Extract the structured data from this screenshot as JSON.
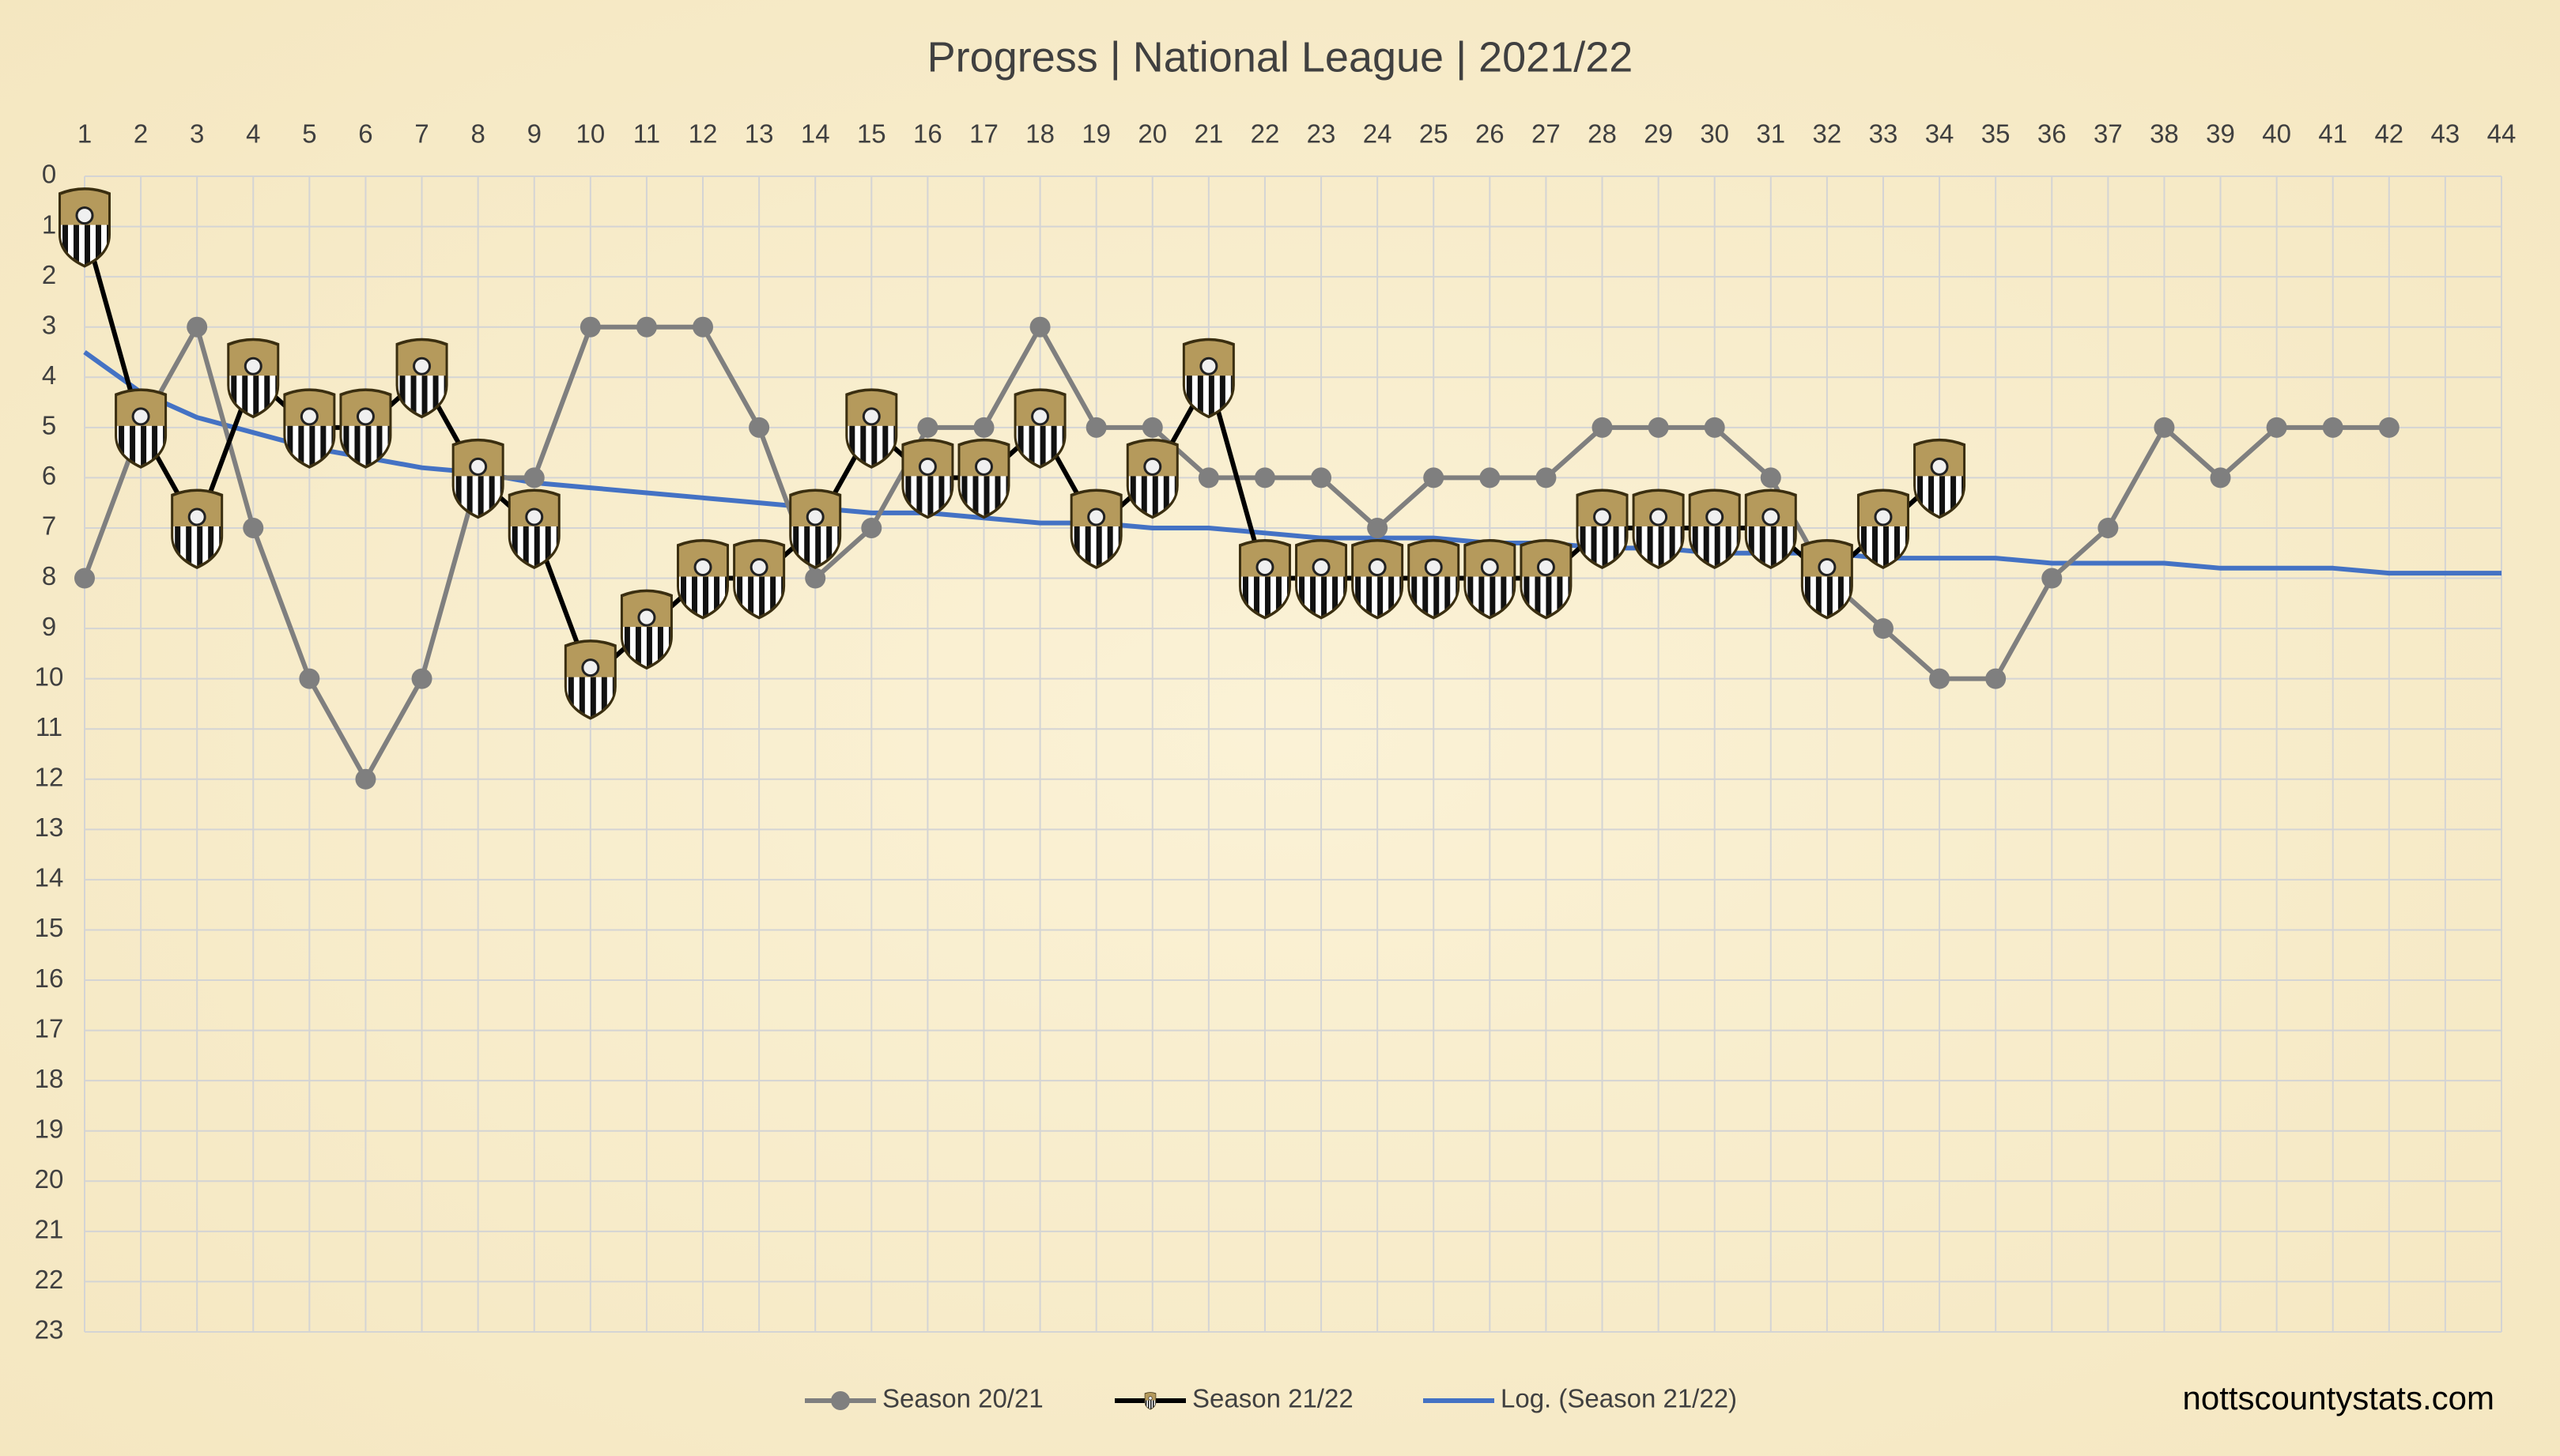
{
  "chart_data": {
    "type": "line",
    "title": "Progress | National League | 2021/22",
    "watermark": "nottscountystats.com",
    "categories": [
      1,
      2,
      3,
      4,
      5,
      6,
      7,
      8,
      9,
      10,
      11,
      12,
      13,
      14,
      15,
      16,
      17,
      18,
      19,
      20,
      21,
      22,
      23,
      24,
      25,
      26,
      27,
      28,
      29,
      30,
      31,
      32,
      33,
      34,
      35,
      36,
      37,
      38,
      39,
      40,
      41,
      42,
      43,
      44
    ],
    "ylim": [
      0,
      23
    ],
    "y_reversed": true,
    "yticks": [
      0,
      1,
      2,
      3,
      4,
      5,
      6,
      7,
      8,
      9,
      10,
      11,
      12,
      13,
      14,
      15,
      16,
      17,
      18,
      19,
      20,
      21,
      22,
      23
    ],
    "grid": true,
    "legend": "bottom",
    "series": [
      {
        "name": "Season 20/21",
        "color": "#7f7f7f",
        "marker": "circle",
        "values": [
          8,
          5,
          3,
          7,
          10,
          12,
          10,
          6,
          6,
          3,
          3,
          3,
          5,
          8,
          7,
          5,
          5,
          3,
          5,
          5,
          6,
          6,
          6,
          7,
          6,
          6,
          6,
          5,
          5,
          5,
          6,
          8,
          9,
          10,
          10,
          8,
          7,
          5,
          6,
          5,
          5,
          5,
          null,
          null
        ]
      },
      {
        "name": "Season 21/22",
        "color": "#000000",
        "marker": "badge",
        "values": [
          1,
          5,
          7,
          4,
          5,
          5,
          4,
          6,
          7,
          10,
          9,
          8,
          8,
          7,
          5,
          6,
          6,
          5,
          7,
          6,
          4,
          8,
          8,
          8,
          8,
          8,
          8,
          7,
          7,
          7,
          7,
          8,
          7,
          6,
          null,
          null,
          null,
          null,
          null,
          null,
          null,
          null,
          null,
          null
        ]
      },
      {
        "name": "Log. (Season 21/22)",
        "color": "#4472c4",
        "marker": "none",
        "values": [
          3.5,
          4.3,
          4.8,
          5.1,
          5.4,
          5.6,
          5.8,
          5.9,
          6.1,
          6.2,
          6.3,
          6.4,
          6.5,
          6.6,
          6.7,
          6.7,
          6.8,
          6.9,
          6.9,
          7.0,
          7.0,
          7.1,
          7.2,
          7.2,
          7.2,
          7.3,
          7.3,
          7.4,
          7.4,
          7.5,
          7.5,
          7.5,
          7.6,
          7.6,
          7.6,
          7.7,
          7.7,
          7.7,
          7.8,
          7.8,
          7.8,
          7.9,
          7.9,
          7.9
        ]
      }
    ]
  }
}
